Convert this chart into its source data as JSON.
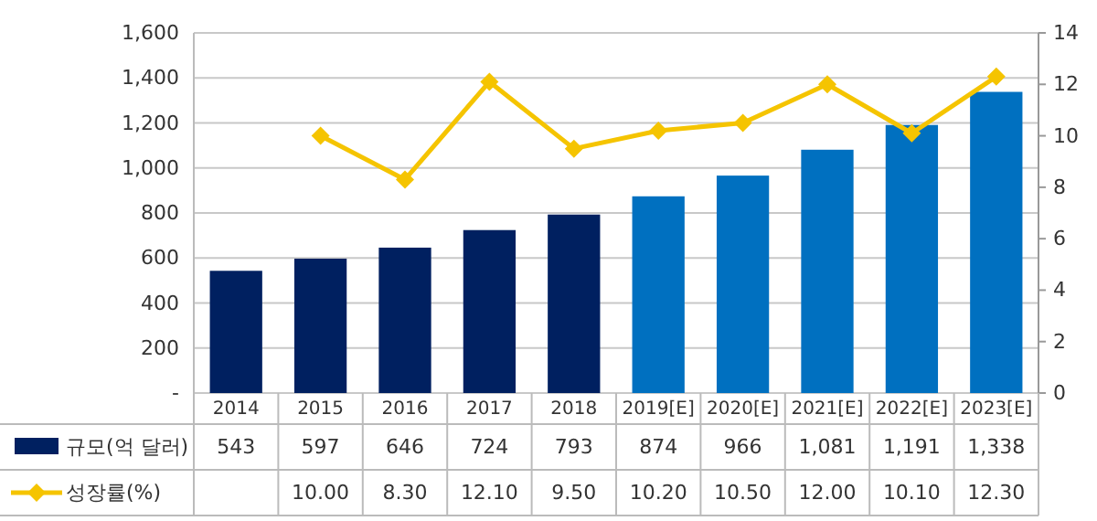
{
  "chart_data": {
    "type": "bar",
    "categories": [
      "2014",
      "2015",
      "2016",
      "2017",
      "2018",
      "2019[E]",
      "2020[E]",
      "2021[E]",
      "2022[E]",
      "2023[E]"
    ],
    "series": [
      {
        "name": "규모(억 달러)",
        "color": "#002060",
        "colors": [
          "#002060",
          "#002060",
          "#002060",
          "#002060",
          "#002060",
          "#0070c0",
          "#0070c0",
          "#0070c0",
          "#0070c0",
          "#0070c0"
        ],
        "values": [
          543,
          597,
          646,
          724,
          793,
          874,
          966,
          1081,
          1191,
          1338
        ],
        "value_labels": [
          "543",
          "597",
          "646",
          "724",
          "793",
          "874",
          "966",
          "1,081",
          "1,191",
          "1,338"
        ]
      },
      {
        "name": "성장률(%)",
        "type": "line",
        "axis": "y2",
        "color": "#f5c400",
        "values": [
          null,
          10.0,
          8.3,
          12.1,
          9.5,
          10.2,
          10.5,
          12.0,
          10.1,
          12.3
        ],
        "value_labels": [
          null,
          "10.00",
          "8.30",
          "12.10",
          "9.50",
          "10.20",
          "10.50",
          "12.00",
          "10.10",
          "12.30"
        ]
      }
    ],
    "ylim": [
      0,
      1600
    ],
    "yticks": [
      {
        "value": 0,
        "label": "-"
      },
      {
        "value": 200,
        "label": "200"
      },
      {
        "value": 400,
        "label": "400"
      },
      {
        "value": 600,
        "label": "600"
      },
      {
        "value": 800,
        "label": "800"
      },
      {
        "value": 1000,
        "label": "1,000"
      },
      {
        "value": 1200,
        "label": "1,200"
      },
      {
        "value": 1400,
        "label": "1,400"
      },
      {
        "value": 1600,
        "label": "1,600"
      }
    ],
    "y2lim": [
      0,
      14
    ],
    "y2ticks": [
      0,
      2,
      4,
      6,
      8,
      10,
      12,
      14
    ],
    "grid": "y",
    "legend": "bottom",
    "marker": "diamond",
    "line_style": "solid"
  }
}
